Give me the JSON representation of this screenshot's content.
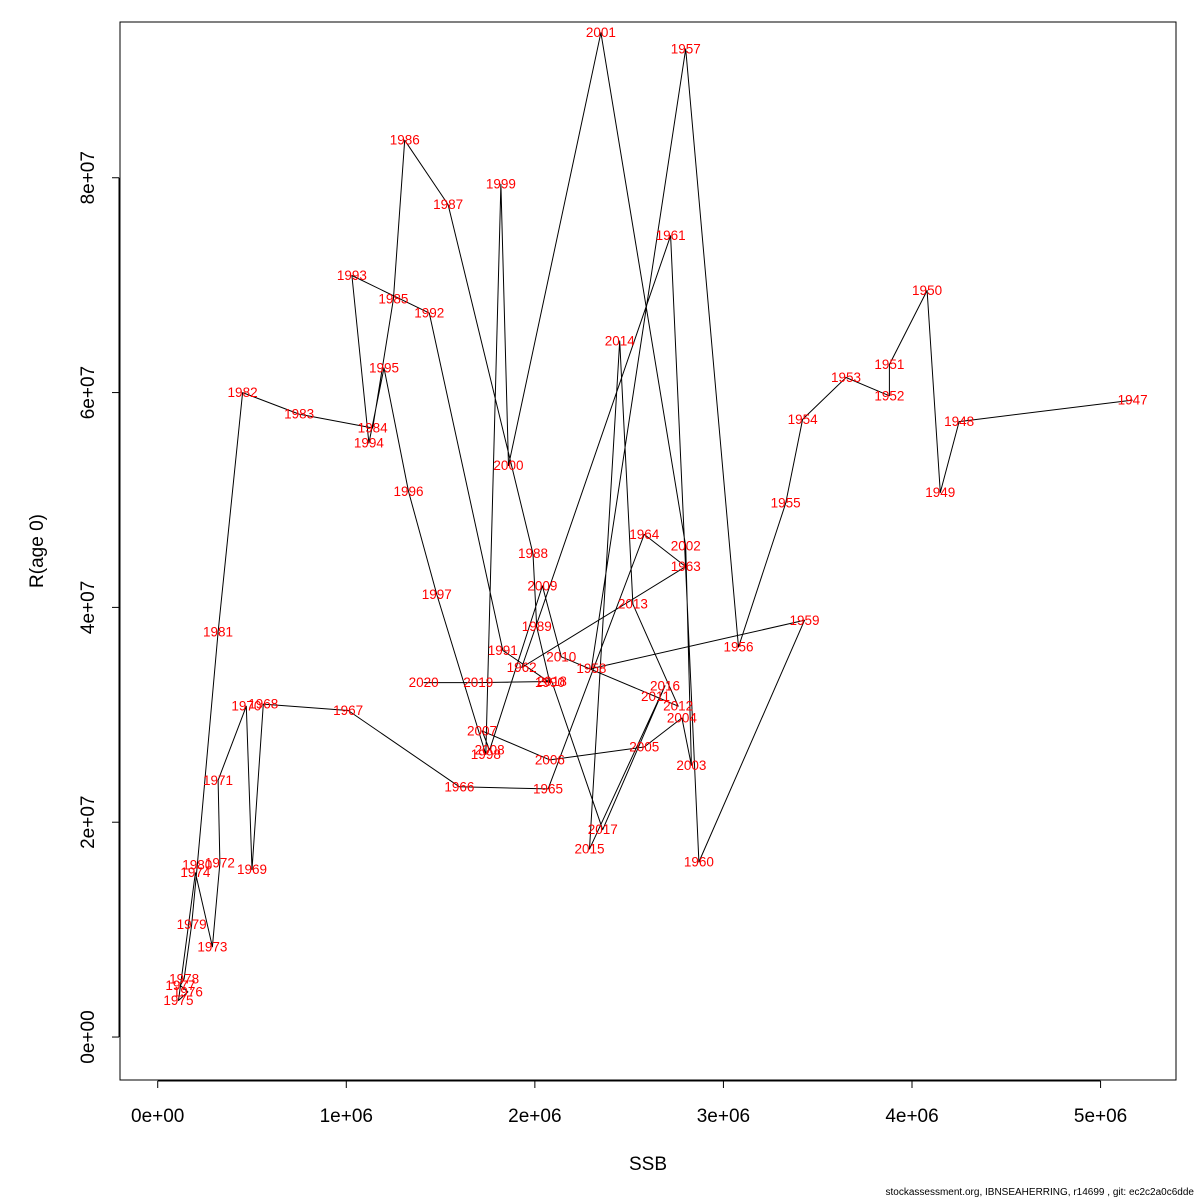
{
  "chart_data": {
    "type": "line",
    "xlabel": "SSB",
    "ylabel": "R(age 0)",
    "xlim": [
      -200000,
      5400000
    ],
    "ylim": [
      -4000000,
      94500000
    ],
    "x_ticks": [
      {
        "value": 0,
        "label": "0e+00"
      },
      {
        "value": 1000000,
        "label": "1e+06"
      },
      {
        "value": 2000000,
        "label": "2e+06"
      },
      {
        "value": 3000000,
        "label": "3e+06"
      },
      {
        "value": 4000000,
        "label": "4e+06"
      },
      {
        "value": 5000000,
        "label": "5e+06"
      }
    ],
    "y_ticks": [
      {
        "value": 0,
        "label": "0e+00"
      },
      {
        "value": 20000000,
        "label": "2e+07"
      },
      {
        "value": 40000000,
        "label": "4e+07"
      },
      {
        "value": 60000000,
        "label": "6e+07"
      },
      {
        "value": 80000000,
        "label": "8e+07"
      }
    ],
    "grid": false,
    "series": [
      {
        "color": "#ff0000",
        "line_color": "#000000",
        "points": [
          {
            "label": "1947",
            "x": 5170000,
            "y": 59300000
          },
          {
            "label": "1948",
            "x": 4250000,
            "y": 57300000
          },
          {
            "label": "1949",
            "x": 4150000,
            "y": 50700000
          },
          {
            "label": "1950",
            "x": 4080000,
            "y": 69500000
          },
          {
            "label": "1951",
            "x": 3880000,
            "y": 62600000
          },
          {
            "label": "1952",
            "x": 3880000,
            "y": 59700000
          },
          {
            "label": "1953",
            "x": 3650000,
            "y": 61400000
          },
          {
            "label": "1954",
            "x": 3420000,
            "y": 57500000
          },
          {
            "label": "1955",
            "x": 3330000,
            "y": 49700000
          },
          {
            "label": "1956",
            "x": 3080000,
            "y": 36300000
          },
          {
            "label": "1957",
            "x": 2800000,
            "y": 92000000
          },
          {
            "label": "1958",
            "x": 2300000,
            "y": 34300000
          },
          {
            "label": "1959",
            "x": 3430000,
            "y": 38800000
          },
          {
            "label": "1960",
            "x": 2870000,
            "y": 16300000
          },
          {
            "label": "1961",
            "x": 2720000,
            "y": 74600000
          },
          {
            "label": "1962",
            "x": 1930000,
            "y": 34400000
          },
          {
            "label": "1963",
            "x": 2800000,
            "y": 43800000
          },
          {
            "label": "1964",
            "x": 2580000,
            "y": 46800000
          },
          {
            "label": "1965",
            "x": 2070000,
            "y": 23100000
          },
          {
            "label": "1966",
            "x": 1600000,
            "y": 23300000
          },
          {
            "label": "1967",
            "x": 1010000,
            "y": 30400000
          },
          {
            "label": "1968",
            "x": 560000,
            "y": 31000000
          },
          {
            "label": "1969",
            "x": 500000,
            "y": 15600000
          },
          {
            "label": "1970",
            "x": 470000,
            "y": 30800000
          },
          {
            "label": "1971",
            "x": 320000,
            "y": 23900000
          },
          {
            "label": "1972",
            "x": 330000,
            "y": 16200000
          },
          {
            "label": "1973",
            "x": 290000,
            "y": 8400000
          },
          {
            "label": "1974",
            "x": 200000,
            "y": 15300000
          },
          {
            "label": "1975",
            "x": 110000,
            "y": 3400000
          },
          {
            "label": "1976",
            "x": 160000,
            "y": 4200000
          },
          {
            "label": "1977",
            "x": 120000,
            "y": 4800000
          },
          {
            "label": "1978",
            "x": 140000,
            "y": 5400000
          },
          {
            "label": "1979",
            "x": 180000,
            "y": 10500000
          },
          {
            "label": "1980",
            "x": 210000,
            "y": 16000000
          },
          {
            "label": "1981",
            "x": 320000,
            "y": 37700000
          },
          {
            "label": "1982",
            "x": 450000,
            "y": 60000000
          },
          {
            "label": "1983",
            "x": 750000,
            "y": 58000000
          },
          {
            "label": "1984",
            "x": 1140000,
            "y": 56700000
          },
          {
            "label": "1985",
            "x": 1250000,
            "y": 68700000
          },
          {
            "label": "1986",
            "x": 1310000,
            "y": 83500000
          },
          {
            "label": "1987",
            "x": 1540000,
            "y": 77500000
          },
          {
            "label": "1988",
            "x": 1990000,
            "y": 45000000
          },
          {
            "label": "1989",
            "x": 2010000,
            "y": 38200000
          },
          {
            "label": "1990",
            "x": 2080000,
            "y": 33000000
          },
          {
            "label": "1991",
            "x": 1830000,
            "y": 36000000
          },
          {
            "label": "1992",
            "x": 1440000,
            "y": 67400000
          },
          {
            "label": "1993",
            "x": 1030000,
            "y": 70900000
          },
          {
            "label": "1994",
            "x": 1120000,
            "y": 55300000
          },
          {
            "label": "1995",
            "x": 1200000,
            "y": 62300000
          },
          {
            "label": "1996",
            "x": 1330000,
            "y": 50800000
          },
          {
            "label": "1997",
            "x": 1480000,
            "y": 41200000
          },
          {
            "label": "1998",
            "x": 1740000,
            "y": 26300000
          },
          {
            "label": "1999",
            "x": 1820000,
            "y": 79400000
          },
          {
            "label": "2000",
            "x": 1860000,
            "y": 53200000
          },
          {
            "label": "2001",
            "x": 2350000,
            "y": 93500000
          },
          {
            "label": "2002",
            "x": 2800000,
            "y": 45700000
          },
          {
            "label": "2003",
            "x": 2830000,
            "y": 25300000
          },
          {
            "label": "2004",
            "x": 2780000,
            "y": 29700000
          },
          {
            "label": "2005",
            "x": 2580000,
            "y": 27000000
          },
          {
            "label": "2006",
            "x": 2080000,
            "y": 25800000
          },
          {
            "label": "2007",
            "x": 1720000,
            "y": 28500000
          },
          {
            "label": "2008",
            "x": 1760000,
            "y": 26700000
          },
          {
            "label": "2009",
            "x": 2040000,
            "y": 42000000
          },
          {
            "label": "2010",
            "x": 2140000,
            "y": 35400000
          },
          {
            "label": "2011",
            "x": 2640000,
            "y": 31700000
          },
          {
            "label": "2012",
            "x": 2760000,
            "y": 30800000
          },
          {
            "label": "2013",
            "x": 2520000,
            "y": 40300000
          },
          {
            "label": "2014",
            "x": 2450000,
            "y": 64800000
          },
          {
            "label": "2015",
            "x": 2290000,
            "y": 17500000
          },
          {
            "label": "2016",
            "x": 2690000,
            "y": 32700000
          },
          {
            "label": "2017",
            "x": 2360000,
            "y": 19300000
          },
          {
            "label": "2018",
            "x": 2090000,
            "y": 33100000
          },
          {
            "label": "2019",
            "x": 1700000,
            "y": 33000000
          },
          {
            "label": "2020",
            "x": 1410000,
            "y": 33000000
          }
        ]
      }
    ]
  },
  "footer": "stockassessment.org, IBNSEAHERRING, r14699 , git: ec2c2a0c6dde"
}
